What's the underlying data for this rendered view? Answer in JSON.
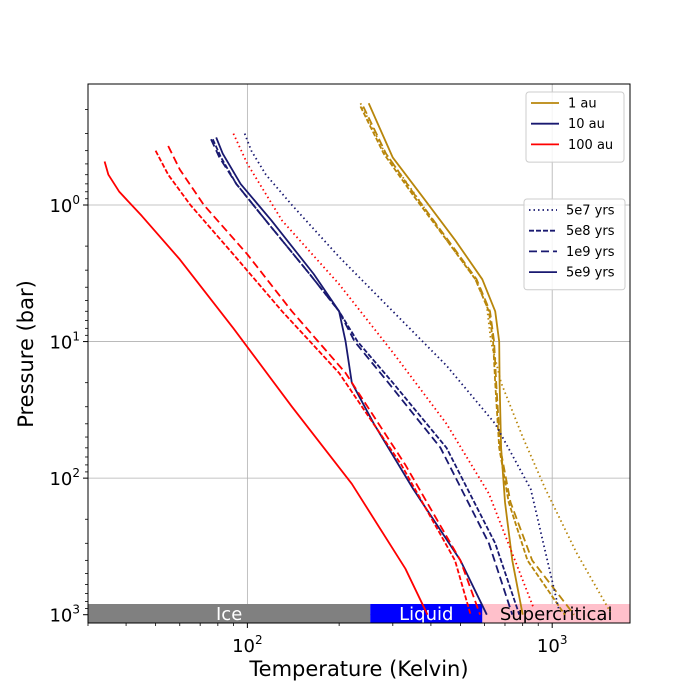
{
  "chart_data": {
    "type": "line",
    "title": "",
    "xlabel": "Temperature (Kelvin)",
    "ylabel": "Pressure (bar)",
    "xscale": "log",
    "yscale": "log",
    "yinverted": true,
    "xlim": [
      30,
      1800
    ],
    "ylim": [
      1150,
      0.13
    ],
    "grid": true,
    "xticks": [
      {
        "value": 100,
        "base": "10",
        "exp": "2"
      },
      {
        "value": 1000,
        "base": "10",
        "exp": "3"
      }
    ],
    "yticks": [
      {
        "value": 1,
        "base": "10",
        "exp": "0"
      },
      {
        "value": 10,
        "base": "10",
        "exp": "1"
      },
      {
        "value": 100,
        "base": "10",
        "exp": "2"
      },
      {
        "value": 1000,
        "base": "10",
        "exp": "3"
      }
    ],
    "regions": [
      {
        "label": "Ice",
        "x0": 30,
        "x1": 253,
        "color": "#808080",
        "text_color": "#ffffff"
      },
      {
        "label": "Liquid",
        "x0": 253,
        "x1": 590,
        "color": "#0000ff",
        "text_color": "#ffffff"
      },
      {
        "label": "Supercritical",
        "x0": 590,
        "x1": 1800,
        "color": "#ffc0cb",
        "text_color": "#000000"
      }
    ],
    "legend_distance": {
      "placement": "top-right",
      "entries": [
        {
          "label": "1 au",
          "color": "#b8860b"
        },
        {
          "label": "10 au",
          "color": "#191970"
        },
        {
          "label": "100 au",
          "color": "#ff0000"
        }
      ]
    },
    "legend_age": {
      "placement": "upper-right",
      "entries": [
        {
          "label": "5e7 yrs",
          "dash": "dotted"
        },
        {
          "label": "5e8 yrs",
          "dash": "densely-dashed"
        },
        {
          "label": "1e9 yrs",
          "dash": "dashed"
        },
        {
          "label": "5e9 yrs",
          "dash": "solid"
        }
      ]
    },
    "series": [
      {
        "name": "1 au, 5e7 yrs",
        "color": "#b8860b",
        "dash": "dotted",
        "x": [
          235,
          280,
          350,
          450,
          560,
          610,
          630,
          680,
          800,
          950,
          1200,
          1550
        ],
        "y": [
          0.18,
          0.4,
          0.8,
          1.8,
          3.5,
          5.5,
          10,
          20,
          50,
          120,
          350,
          950
        ]
      },
      {
        "name": "1 au, 5e8 yrs",
        "color": "#b8860b",
        "dash": "densely-dashed",
        "x": [
          235,
          280,
          350,
          450,
          560,
          620,
          640,
          650,
          670,
          720,
          830,
          1100
        ],
        "y": [
          0.19,
          0.42,
          0.85,
          1.8,
          3.5,
          6,
          10,
          20,
          60,
          150,
          400,
          1000
        ]
      },
      {
        "name": "1 au, 1e9 yrs",
        "color": "#b8860b",
        "dash": "dashed",
        "x": [
          240,
          285,
          355,
          455,
          565,
          625,
          645,
          655,
          675,
          730,
          860,
          1180
        ],
        "y": [
          0.19,
          0.42,
          0.85,
          1.8,
          3.5,
          6,
          10,
          20,
          60,
          150,
          400,
          1000
        ]
      },
      {
        "name": "1 au, 5e9 yrs",
        "color": "#b8860b",
        "dash": "solid",
        "x": [
          250,
          300,
          380,
          480,
          590,
          650,
          670,
          672,
          680,
          700,
          740,
          800
        ],
        "y": [
          0.18,
          0.45,
          0.9,
          1.8,
          3.5,
          6,
          10,
          20,
          60,
          150,
          400,
          1000
        ]
      },
      {
        "name": "10 au, 5e7 yrs",
        "color": "#191970",
        "dash": "dotted",
        "x": [
          98,
          103,
          115,
          140,
          200,
          300,
          450,
          650,
          850,
          1050
        ],
        "y": [
          0.3,
          0.4,
          0.6,
          1.0,
          2.4,
          6,
          15,
          40,
          120,
          900
        ]
      },
      {
        "name": "10 au, 5e8 yrs",
        "color": "#191970",
        "dash": "densely-dashed",
        "x": [
          77,
          82,
          92,
          115,
          160,
          200,
          230,
          300,
          450,
          650,
          780
        ],
        "y": [
          0.33,
          0.45,
          0.7,
          1.3,
          3.2,
          6,
          10,
          20,
          60,
          300,
          1000
        ]
      },
      {
        "name": "10 au, 1e9 yrs",
        "color": "#191970",
        "dash": "dashed",
        "x": [
          76,
          81,
          92,
          115,
          160,
          200,
          225,
          290,
          430,
          620,
          740
        ],
        "y": [
          0.33,
          0.45,
          0.7,
          1.3,
          3.2,
          6,
          10,
          20,
          60,
          300,
          1000
        ]
      },
      {
        "name": "10 au, 5e9 yrs",
        "color": "#191970",
        "dash": "solid",
        "x": [
          79,
          83,
          95,
          120,
          165,
          200,
          210,
          220,
          260,
          350,
          500,
          610
        ],
        "y": [
          0.32,
          0.42,
          0.7,
          1.3,
          3.2,
          6,
          10,
          20,
          40,
          120,
          400,
          1000
        ]
      },
      {
        "name": "100 au, 5e7 yrs",
        "color": "#ff0000",
        "dash": "dotted",
        "x": [
          90,
          100,
          130,
          200,
          300,
          450,
          620,
          870
        ],
        "y": [
          0.3,
          0.5,
          1.3,
          3.8,
          12,
          40,
          130,
          900
        ]
      },
      {
        "name": "100 au, 5e8 yrs",
        "color": "#ff0000",
        "dash": "densely-dashed",
        "x": [
          50,
          55,
          65,
          90,
          130,
          200,
          320,
          480,
          540
        ],
        "y": [
          0.4,
          0.6,
          1.0,
          2.3,
          6,
          17,
          80,
          400,
          1000
        ]
      },
      {
        "name": "100 au, 1e9 yrs",
        "color": "#ff0000",
        "dash": "dashed",
        "x": [
          55,
          60,
          72,
          100,
          140,
          210,
          330,
          500,
          580
        ],
        "y": [
          0.37,
          0.55,
          1.0,
          2.3,
          6,
          17,
          80,
          400,
          1000
        ]
      },
      {
        "name": "100 au, 5e9 yrs",
        "color": "#ff0000",
        "dash": "solid",
        "x": [
          34,
          35,
          38,
          45,
          60,
          90,
          140,
          220,
          330,
          390
        ],
        "y": [
          0.48,
          0.6,
          0.8,
          1.2,
          2.5,
          8,
          30,
          110,
          460,
          1000
        ]
      }
    ]
  }
}
